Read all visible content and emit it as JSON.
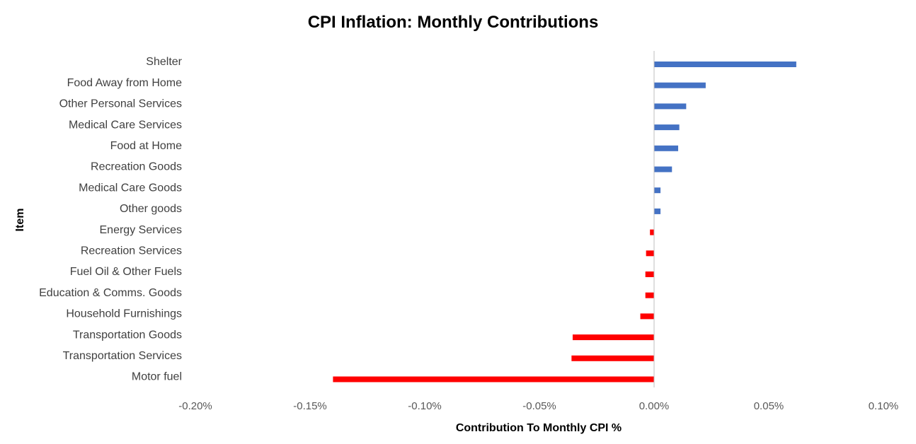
{
  "chart_data": {
    "type": "bar",
    "orientation": "horizontal",
    "title": "CPI Inflation: Monthly Contributions",
    "xlabel": "Contribution To Monthly CPI %",
    "ylabel": "Item",
    "xlim": [
      -0.2,
      0.1
    ],
    "x_ticks": [
      -0.2,
      -0.15,
      -0.1,
      -0.05,
      0.0,
      0.05,
      0.1
    ],
    "x_tick_labels": [
      "-0.20%",
      "-0.15%",
      "-0.10%",
      "-0.05%",
      "0.00%",
      "0.05%",
      "0.10%"
    ],
    "grid": false,
    "legend": "none",
    "categories": [
      "Shelter",
      "Food Away from Home",
      "Other Personal Services",
      "Medical Care Services",
      "Food at Home",
      "Recreation Goods",
      "Medical Care Goods",
      "Other goods",
      "Energy Services",
      "Recreation Services",
      "Fuel Oil & Other Fuels",
      "Education & Comms. Goods",
      "Household Furnishings",
      "Transportation Goods",
      "Transportation Services",
      "Motor fuel"
    ],
    "values": [
      0.062,
      0.0225,
      0.014,
      0.011,
      0.0105,
      0.0078,
      0.0028,
      0.0028,
      -0.0018,
      -0.0035,
      -0.0038,
      -0.0038,
      -0.006,
      -0.0355,
      -0.036,
      -0.14
    ],
    "colors": {
      "positive": "#4472C4",
      "negative": "#FF0000",
      "axis": "#BFBFBF"
    }
  }
}
